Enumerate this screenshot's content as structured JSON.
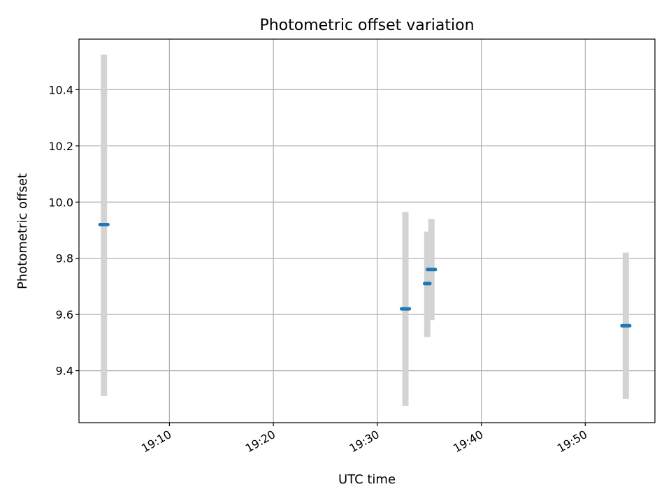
{
  "chart_data": {
    "type": "scatter",
    "title": "Photometric offset variation",
    "xlabel": "UTC time",
    "ylabel": "Photometric offset",
    "x_ticks": [
      "19:10",
      "19:20",
      "19:30",
      "19:40",
      "19:50"
    ],
    "y_ticks": [
      "9.4",
      "9.6",
      "9.8",
      "10.0",
      "10.2",
      "10.4"
    ],
    "xlim": [
      "19:01:18",
      "19:56:42"
    ],
    "ylim": [
      9.215,
      10.58
    ],
    "grid": true,
    "series": [
      {
        "x": [
          "19:03:42",
          "19:32:42",
          "19:34:48",
          "19:35:12",
          "19:53:54"
        ],
        "values": [
          9.92,
          9.62,
          9.71,
          9.76,
          9.56
        ],
        "error_low": [
          9.31,
          9.275,
          9.52,
          9.58,
          9.3
        ],
        "error_high": [
          10.525,
          9.965,
          9.895,
          9.94,
          9.82
        ],
        "marker_widths": [
          2,
          2,
          1,
          2,
          2
        ]
      }
    ],
    "colors": {
      "marker": "#1f77b4",
      "errorbar": "#d3d3d3",
      "grid": "#b0b0b0",
      "axes": "#000000"
    }
  }
}
